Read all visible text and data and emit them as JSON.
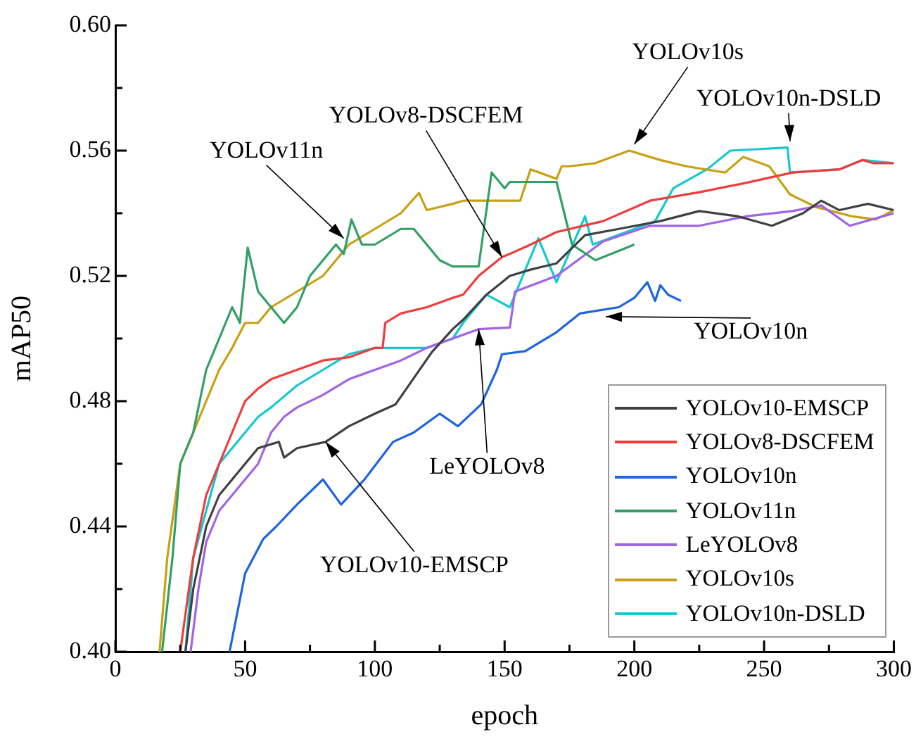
{
  "chart_data": {
    "type": "line",
    "xlabel": "epoch",
    "ylabel": "mAP50",
    "xlim": [
      0,
      300
    ],
    "xticks": [
      0,
      {
        "value": 25,
        "label": null
      },
      50,
      {
        "value": 75,
        "label": null
      },
      100,
      {
        "value": 125,
        "label": null
      },
      150,
      {
        "value": 175,
        "label": null
      },
      200,
      {
        "value": 225,
        "label": null
      },
      250,
      {
        "value": 275,
        "label": null
      },
      300
    ],
    "ylim": [
      0.4,
      0.6
    ],
    "yticks": [
      {
        "value": 0.4,
        "label": "0.40"
      },
      {
        "value": 0.42,
        "label": null
      },
      {
        "value": 0.44,
        "label": "0.44"
      },
      {
        "value": 0.46,
        "label": null
      },
      {
        "value": 0.48,
        "label": "0.48"
      },
      {
        "value": 0.5,
        "label": null
      },
      {
        "value": 0.52,
        "label": "0.52"
      },
      {
        "value": 0.54,
        "label": null
      },
      {
        "value": 0.56,
        "label": "0.56"
      },
      {
        "value": 0.58,
        "label": null
      },
      {
        "value": 0.6,
        "label": "0.60"
      }
    ],
    "grid": false,
    "legend": "bottom right",
    "marker": "none",
    "line_style": "solid",
    "series": [
      {
        "name": "YOLOv10-EMSCP",
        "color": "#404040",
        "x": [
          27,
          30,
          35,
          40,
          45,
          50,
          55,
          63,
          65,
          70,
          81,
          90,
          100,
          108,
          122,
          130,
          134,
          143,
          149,
          152,
          160,
          170,
          181,
          194,
          210,
          225,
          240,
          253,
          265,
          272,
          279,
          290,
          300
        ],
        "values": [
          0.4,
          0.42,
          0.44,
          0.45,
          0.455,
          0.46,
          0.465,
          0.467,
          0.462,
          0.465,
          0.467,
          0.472,
          0.476,
          0.479,
          0.4957,
          0.503,
          0.506,
          0.514,
          0.518,
          0.52,
          0.522,
          0.524,
          0.533,
          0.535,
          0.5375,
          0.5407,
          0.539,
          0.536,
          0.54,
          0.544,
          0.541,
          0.543,
          0.541
        ]
      },
      {
        "name": "YOLOv8-DSCFEM",
        "color": "#f03c3c",
        "x": [
          25,
          30,
          35,
          40,
          45,
          50,
          55,
          60,
          70,
          80,
          90,
          100,
          103,
          104,
          110,
          120,
          130,
          134,
          140,
          149,
          152,
          160,
          170,
          188,
          206,
          225,
          243,
          261,
          279,
          288,
          292,
          300
        ],
        "values": [
          0.4,
          0.43,
          0.45,
          0.46,
          0.47,
          0.48,
          0.484,
          0.487,
          0.49,
          0.493,
          0.494,
          0.497,
          0.497,
          0.505,
          0.508,
          0.51,
          0.513,
          0.514,
          0.52,
          0.526,
          0.527,
          0.53,
          0.534,
          0.5375,
          0.544,
          0.5467,
          0.5497,
          0.553,
          0.554,
          0.557,
          0.556,
          0.556
        ]
      },
      {
        "name": "YOLOv10n",
        "color": "#1e64dc",
        "x": [
          44,
          50,
          57,
          62,
          70,
          80,
          87,
          96,
          107,
          115,
          125,
          132,
          141,
          147,
          149,
          158,
          170,
          179,
          194,
          200,
          205,
          208,
          210,
          213,
          218
        ],
        "values": [
          0.4,
          0.425,
          0.436,
          0.44,
          0.447,
          0.455,
          0.447,
          0.455,
          0.467,
          0.47,
          0.476,
          0.472,
          0.479,
          0.49,
          0.495,
          0.496,
          0.502,
          0.508,
          0.51,
          0.513,
          0.518,
          0.512,
          0.517,
          0.514,
          0.512
        ]
      },
      {
        "name": "YOLOv11n",
        "color": "#32a064",
        "x": [
          18,
          22,
          25,
          30,
          35,
          40,
          45,
          48,
          51,
          55,
          60,
          65,
          70,
          75,
          80,
          85,
          88,
          91,
          95,
          100,
          110,
          115,
          120,
          125,
          130,
          140,
          145,
          150,
          152,
          160,
          170,
          173,
          176,
          185,
          200
        ],
        "values": [
          0.4,
          0.43,
          0.46,
          0.47,
          0.49,
          0.5,
          0.51,
          0.505,
          0.529,
          0.515,
          0.51,
          0.505,
          0.51,
          0.52,
          0.525,
          0.53,
          0.527,
          0.538,
          0.53,
          0.53,
          0.535,
          0.535,
          0.53,
          0.525,
          0.523,
          0.523,
          0.553,
          0.548,
          0.55,
          0.55,
          0.55,
          0.54,
          0.53,
          0.525,
          0.53
        ]
      },
      {
        "name": "LeYOLOv8",
        "color": "#a064e6",
        "x": [
          29,
          32,
          35,
          40,
          50,
          55,
          60,
          65,
          70,
          80,
          90,
          100,
          110,
          120,
          130,
          140,
          152,
          154,
          170,
          188,
          206,
          225,
          243,
          261,
          272,
          283,
          300
        ],
        "values": [
          0.4,
          0.42,
          0.435,
          0.445,
          0.455,
          0.46,
          0.47,
          0.475,
          0.478,
          0.482,
          0.487,
          0.49,
          0.493,
          0.497,
          0.5,
          0.503,
          0.5035,
          0.515,
          0.52,
          0.531,
          0.536,
          0.536,
          0.539,
          0.5407,
          0.5425,
          0.536,
          0.54
        ]
      },
      {
        "name": "YOLOv10s",
        "color": "#c8a014",
        "x": [
          17,
          20,
          25,
          30,
          35,
          40,
          45,
          50,
          55,
          60,
          70,
          80,
          90,
          100,
          110,
          117,
          120,
          130,
          134,
          156,
          160,
          170,
          172,
          175,
          185,
          198,
          210,
          220,
          235,
          242,
          252,
          260,
          270,
          284,
          293,
          300
        ],
        "values": [
          0.4,
          0.43,
          0.46,
          0.47,
          0.48,
          0.49,
          0.497,
          0.505,
          0.505,
          0.51,
          0.515,
          0.52,
          0.53,
          0.535,
          0.54,
          0.5465,
          0.541,
          0.543,
          0.544,
          0.544,
          0.554,
          0.551,
          0.555,
          0.555,
          0.556,
          0.56,
          0.557,
          0.555,
          0.553,
          0.558,
          0.555,
          0.546,
          0.542,
          0.539,
          0.538,
          0.541
        ]
      },
      {
        "name": "YOLOv10n-DSLD",
        "color": "#14c8d2",
        "x": [
          27,
          30,
          35,
          40,
          45,
          50,
          55,
          60,
          70,
          80,
          90,
          100,
          110,
          120,
          130,
          134,
          143,
          152,
          163,
          170,
          181,
          184,
          208,
          215,
          228,
          237,
          259,
          260,
          279,
          288,
          300
        ],
        "values": [
          0.4,
          0.43,
          0.445,
          0.46,
          0.465,
          0.47,
          0.475,
          0.478,
          0.485,
          0.49,
          0.495,
          0.497,
          0.497,
          0.497,
          0.5,
          0.505,
          0.514,
          0.51,
          0.532,
          0.518,
          0.539,
          0.53,
          0.5375,
          0.548,
          0.554,
          0.56,
          0.561,
          0.553,
          0.554,
          0.557,
          0.556
        ]
      }
    ],
    "annotations": [
      {
        "text": "YOLOv11n",
        "x": 88,
        "y": 0.532
      },
      {
        "text": "YOLOv8-DSCFEM",
        "x": 149,
        "y": 0.526
      },
      {
        "text": "YOLOv10s",
        "x": 200,
        "y": 0.562
      },
      {
        "text": "YOLOv10n-DSLD",
        "x": 260,
        "y": 0.563
      },
      {
        "text": "YOLOv10n",
        "x": 189,
        "y": 0.507
      },
      {
        "text": "LeYOLOv8",
        "x": 140,
        "y": 0.503
      },
      {
        "text": "YOLOv10-EMSCP",
        "x": 81,
        "y": 0.467
      }
    ]
  }
}
